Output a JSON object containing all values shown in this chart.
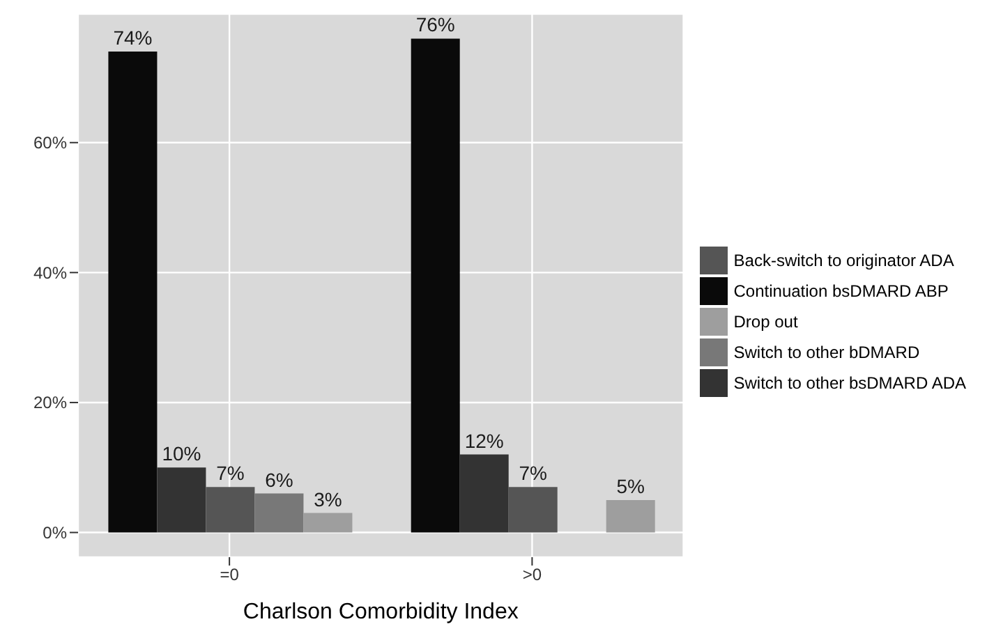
{
  "chart_data": {
    "type": "bar",
    "xlabel": "Charlson Comorbidity Index",
    "categories": [
      "=0",
      ">0"
    ],
    "series": [
      {
        "name": "Continuation bsDMARD ABP",
        "color": "#0a0a0a",
        "values": [
          74,
          76
        ],
        "value_labels": [
          "74%",
          "76%"
        ]
      },
      {
        "name": "Switch to other bsDMARD ADA",
        "color": "#333333",
        "values": [
          10,
          12
        ],
        "value_labels": [
          "10%",
          "12%"
        ]
      },
      {
        "name": "Back-switch to originator ADA",
        "color": "#555555",
        "values": [
          7,
          7
        ],
        "value_labels": [
          "7%",
          "7%"
        ]
      },
      {
        "name": "Switch to other bDMARD",
        "color": "#787878",
        "values": [
          6,
          null
        ],
        "value_labels": [
          "6%",
          null
        ]
      },
      {
        "name": "Drop out",
        "color": "#9e9e9e",
        "values": [
          3,
          5
        ],
        "value_labels": [
          "3%",
          "5%"
        ]
      }
    ],
    "ylim": [
      -3.8,
      79.8
    ],
    "yticks": [
      {
        "value": 0,
        "label": "0%"
      },
      {
        "value": 20,
        "label": "20%"
      },
      {
        "value": 40,
        "label": "40%"
      },
      {
        "value": 60,
        "label": "60%"
      }
    ],
    "grid": true,
    "legend": "right"
  }
}
